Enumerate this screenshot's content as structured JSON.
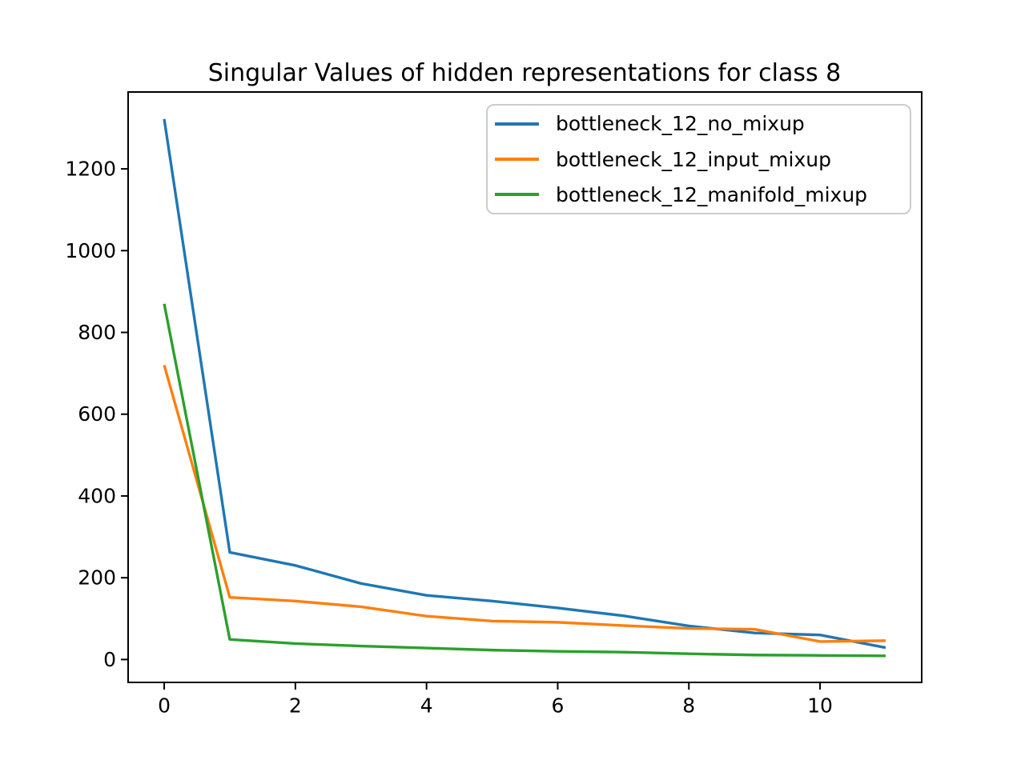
{
  "chart_data": {
    "type": "line",
    "title": "Singular Values of hidden representations for class 8",
    "xlabel": "",
    "ylabel": "",
    "grid": false,
    "legend_position": "upper right",
    "xlim": [
      -0.55,
      11.55
    ],
    "ylim": [
      -56,
      1388
    ],
    "x_ticks": [
      0,
      2,
      4,
      6,
      8,
      10
    ],
    "y_ticks": [
      0,
      200,
      400,
      600,
      800,
      1000,
      1200
    ],
    "x": [
      0,
      1,
      2,
      3,
      4,
      5,
      6,
      7,
      8,
      9,
      10,
      11
    ],
    "series": [
      {
        "name": "bottleneck_12_no_mixup",
        "color": "#1f77b4",
        "values": [
          1322,
          262,
          230,
          186,
          157,
          143,
          126,
          107,
          82,
          65,
          60,
          29
        ]
      },
      {
        "name": "bottleneck_12_input_mixup",
        "color": "#ff7f0e",
        "values": [
          720,
          152,
          143,
          129,
          106,
          94,
          91,
          83,
          76,
          74,
          44,
          46
        ]
      },
      {
        "name": "bottleneck_12_manifold_mixup",
        "color": "#2ca02c",
        "values": [
          870,
          49,
          39,
          33,
          28,
          23,
          20,
          18,
          14,
          11,
          10,
          9
        ]
      }
    ]
  }
}
